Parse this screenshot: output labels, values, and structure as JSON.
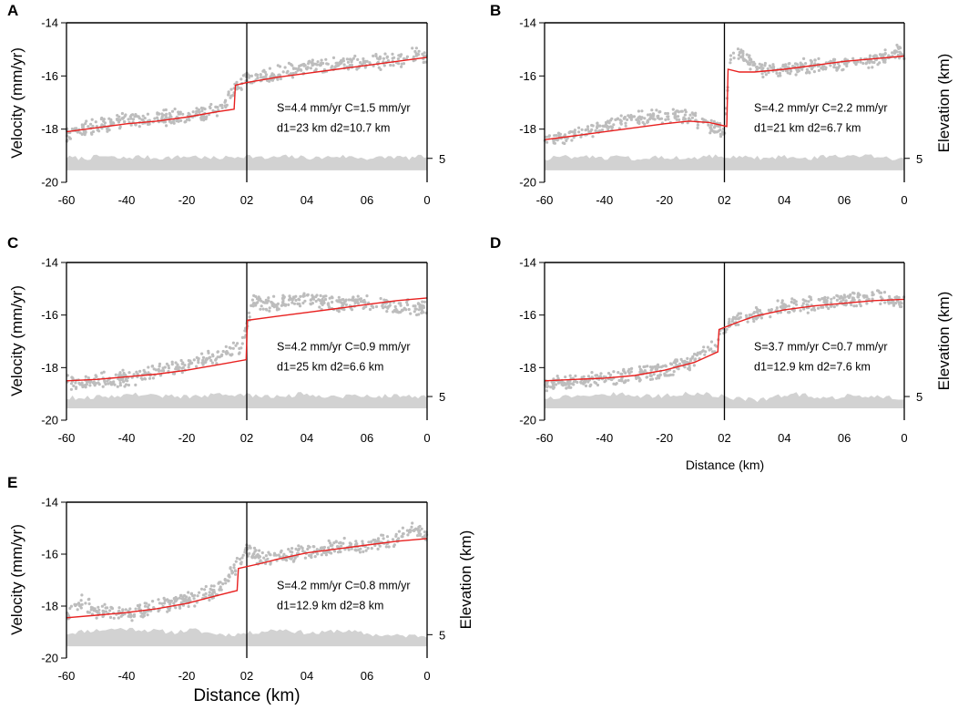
{
  "chart_data": [
    {
      "id": "A",
      "type": "scatter+line",
      "panel_label": "A",
      "ylabel": "Velocity (mm/yr)",
      "right_label": "",
      "xlabel": "",
      "xlim": [
        -60,
        60
      ],
      "ylim": [
        -20,
        -14
      ],
      "xticks": [
        -60,
        -40,
        -20,
        0,
        20,
        40,
        60
      ],
      "xtick_labels": [
        "-60",
        "-40",
        "-20",
        "02",
        "04",
        "06",
        "0"
      ],
      "yticks": [
        -14,
        -16,
        -18,
        -20
      ],
      "ytick_labels": [
        "-14",
        "-16",
        "-18",
        "-20"
      ],
      "elev_tick_label": "5",
      "annotation": [
        "S=4.4 mm/yr C=1.5 mm/yr",
        "d1=23 km d2=10.7 km"
      ],
      "fault_x": 0,
      "jump_x": -4,
      "model": {
        "x": [
          -60,
          -50,
          -40,
          -30,
          -20,
          -10,
          -4.2,
          -4,
          -3.8,
          0,
          10,
          20,
          30,
          40,
          50,
          60
        ],
        "y": [
          -18.1,
          -17.95,
          -17.8,
          -17.7,
          -17.55,
          -17.35,
          -17.25,
          -16.8,
          -16.35,
          -16.25,
          -16.05,
          -15.9,
          -15.75,
          -15.6,
          -15.45,
          -15.3
        ]
      },
      "observed": {
        "x": [
          -60,
          -50,
          -40,
          -30,
          -20,
          -10,
          -5,
          0,
          5,
          10,
          20,
          30,
          40,
          50,
          56,
          60
        ],
        "y": [
          -18.2,
          -17.9,
          -17.6,
          -17.6,
          -17.5,
          -17.3,
          -16.6,
          -16.1,
          -16.0,
          -15.9,
          -15.7,
          -15.6,
          -15.5,
          -15.4,
          -15.2,
          -15.3
        ]
      }
    },
    {
      "id": "B",
      "type": "scatter+line",
      "panel_label": "B",
      "ylabel": "",
      "right_label": "Elevation (km)",
      "xlabel": "",
      "xlim": [
        -60,
        60
      ],
      "ylim": [
        -20,
        -14
      ],
      "xticks": [
        -60,
        -40,
        -20,
        0,
        20,
        40,
        60
      ],
      "xtick_labels": [
        "-60",
        "-40",
        "-20",
        "02",
        "04",
        "06",
        "0"
      ],
      "yticks": [
        -14,
        -16,
        -18,
        -20
      ],
      "ytick_labels": [
        "-14",
        "-16",
        "-18",
        "-20"
      ],
      "elev_tick_label": "5",
      "annotation": [
        "S=4.2 mm/yr C=2.2 mm/yr",
        "d1=21 km d2=6.7 km"
      ],
      "fault_x": 0,
      "jump_x": 1,
      "model": {
        "x": [
          -60,
          -50,
          -40,
          -30,
          -20,
          -12,
          -5,
          0.8,
          1,
          1.2,
          5,
          10,
          20,
          30,
          40,
          50,
          60
        ],
        "y": [
          -18.4,
          -18.25,
          -18.1,
          -17.95,
          -17.8,
          -17.7,
          -17.75,
          -17.9,
          -16.8,
          -15.75,
          -15.85,
          -15.85,
          -15.75,
          -15.6,
          -15.45,
          -15.35,
          -15.25
        ]
      },
      "observed": {
        "x": [
          -60,
          -50,
          -40,
          -30,
          -20,
          -10,
          -5,
          0,
          2,
          5,
          10,
          20,
          30,
          40,
          50,
          58,
          60
        ],
        "y": [
          -18.4,
          -18.2,
          -17.9,
          -17.6,
          -17.5,
          -17.6,
          -17.9,
          -18.0,
          -15.2,
          -15.1,
          -15.7,
          -15.8,
          -15.6,
          -15.6,
          -15.4,
          -15.0,
          -15.3
        ]
      }
    },
    {
      "id": "C",
      "type": "scatter+line",
      "panel_label": "C",
      "ylabel": "Velocity (mm/yr)",
      "right_label": "",
      "xlabel": "",
      "xlim": [
        -60,
        60
      ],
      "ylim": [
        -20,
        -14
      ],
      "xticks": [
        -60,
        -40,
        -20,
        0,
        20,
        40,
        60
      ],
      "xtick_labels": [
        "-60",
        "-40",
        "-20",
        "02",
        "04",
        "06",
        "0"
      ],
      "yticks": [
        -14,
        -16,
        -18,
        -20
      ],
      "ytick_labels": [
        "-14",
        "-16",
        "-18",
        "-20"
      ],
      "elev_tick_label": "5",
      "annotation": [
        "S=4.2 mm/yr C=0.9 mm/yr",
        "d1=25 km d2=6.6 km"
      ],
      "fault_x": 0,
      "jump_x": 0,
      "model": {
        "x": [
          -60,
          -50,
          -40,
          -30,
          -20,
          -10,
          -0.2,
          0,
          0.2,
          10,
          20,
          30,
          40,
          50,
          60
        ],
        "y": [
          -18.5,
          -18.45,
          -18.35,
          -18.25,
          -18.1,
          -17.9,
          -17.7,
          -16.9,
          -16.2,
          -16.05,
          -15.9,
          -15.75,
          -15.6,
          -15.45,
          -15.35
        ]
      },
      "observed": {
        "x": [
          -60,
          -50,
          -40,
          -30,
          -20,
          -10,
          -2,
          0,
          2,
          10,
          20,
          30,
          40,
          50,
          60
        ],
        "y": [
          -18.6,
          -18.5,
          -18.4,
          -18.2,
          -17.9,
          -17.6,
          -17.2,
          -16.5,
          -15.5,
          -15.6,
          -15.4,
          -15.6,
          -15.5,
          -15.7,
          -15.7
        ]
      }
    },
    {
      "id": "D",
      "type": "scatter+line",
      "panel_label": "D",
      "ylabel": "",
      "right_label": "Elevation (km)",
      "xlabel": "Distance (km)",
      "xlim": [
        -60,
        60
      ],
      "ylim": [
        -20,
        -14
      ],
      "xticks": [
        -60,
        -40,
        -20,
        0,
        20,
        40,
        60
      ],
      "xtick_labels": [
        "-60",
        "-40",
        "-20",
        "02",
        "04",
        "06",
        "0"
      ],
      "yticks": [
        -14,
        -16,
        -18,
        -20
      ],
      "ytick_labels": [
        "-14",
        "-16",
        "-18",
        "-20"
      ],
      "elev_tick_label": "5",
      "annotation": [
        "S=3.7 mm/yr C=0.7 mm/yr",
        "d1=12.9 km d2=7.6 km"
      ],
      "fault_x": 0,
      "jump_x": -2,
      "model": {
        "x": [
          -60,
          -50,
          -40,
          -30,
          -20,
          -10,
          -2.2,
          -2,
          -1.8,
          5,
          10,
          20,
          30,
          40,
          50,
          60
        ],
        "y": [
          -18.5,
          -18.45,
          -18.4,
          -18.3,
          -18.1,
          -17.8,
          -17.4,
          -16.95,
          -16.55,
          -16.25,
          -16.05,
          -15.8,
          -15.65,
          -15.55,
          -15.45,
          -15.4
        ]
      },
      "observed": {
        "x": [
          -60,
          -50,
          -40,
          -30,
          -20,
          -10,
          -2,
          0,
          5,
          10,
          20,
          30,
          40,
          50,
          60
        ],
        "y": [
          -18.6,
          -18.5,
          -18.4,
          -18.3,
          -18.1,
          -17.7,
          -17.0,
          -16.5,
          -16.1,
          -16.0,
          -15.7,
          -15.6,
          -15.4,
          -15.3,
          -15.5
        ]
      }
    },
    {
      "id": "E",
      "type": "scatter+line",
      "panel_label": "E",
      "ylabel": "Velocity (mm/yr)",
      "right_label": "Elevation (km)",
      "xlabel": "Distance (km)",
      "xlim": [
        -60,
        60
      ],
      "ylim": [
        -20,
        -14
      ],
      "xticks": [
        -60,
        -40,
        -20,
        0,
        20,
        40,
        60
      ],
      "xtick_labels": [
        "-60",
        "-40",
        "-20",
        "02",
        "04",
        "06",
        "0"
      ],
      "yticks": [
        -14,
        -16,
        -18,
        -20
      ],
      "ytick_labels": [
        "-14",
        "-16",
        "-18",
        "-20"
      ],
      "elev_tick_label": "5",
      "annotation": [
        "S=4.2 mm/yr C=0.8 mm/yr",
        "d1=12.9 km d2=8 km"
      ],
      "fault_x": 0,
      "jump_x": -3,
      "model": {
        "x": [
          -60,
          -50,
          -40,
          -30,
          -20,
          -10,
          -3.2,
          -3,
          -2.8,
          5,
          10,
          20,
          30,
          40,
          50,
          60
        ],
        "y": [
          -18.45,
          -18.35,
          -18.25,
          -18.1,
          -17.9,
          -17.6,
          -17.4,
          -16.95,
          -16.55,
          -16.35,
          -16.2,
          -15.95,
          -15.8,
          -15.65,
          -15.5,
          -15.4
        ]
      },
      "observed": {
        "x": [
          -60,
          -55,
          -50,
          -40,
          -30,
          -20,
          -10,
          -3,
          0,
          5,
          10,
          20,
          30,
          40,
          50,
          55,
          60
        ],
        "y": [
          -18.4,
          -17.8,
          -18.2,
          -18.3,
          -18.0,
          -17.8,
          -17.4,
          -16.4,
          -15.9,
          -16.2,
          -16.1,
          -15.9,
          -15.7,
          -15.7,
          -15.4,
          -15.0,
          -15.3
        ]
      }
    }
  ]
}
